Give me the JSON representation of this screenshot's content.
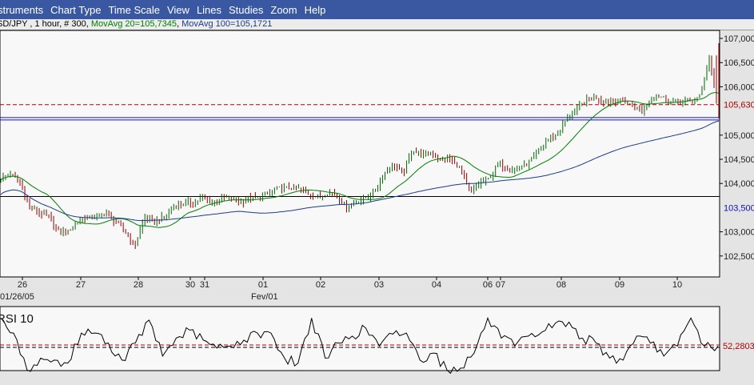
{
  "menu": {
    "items": [
      "struments",
      "Chart Type",
      "Time Scale",
      "View",
      "Lines",
      "Studies",
      "Zoom",
      "Help"
    ]
  },
  "info": {
    "symbol": "SD/JPY , 1 hour, # 300, ",
    "ma20": "MovAvg 20=105,7345",
    "sep": ", ",
    "ma100": "MovAvg 100=105,1721"
  },
  "colors": {
    "menu": "#3a58a2",
    "ma20": "#008000",
    "ma100": "#1a3c8c",
    "up": "#006400",
    "down": "#8b0000",
    "level": "#b00000",
    "support": "#1010c0"
  },
  "price_axis": {
    "labels": [
      "107,000",
      "106,500",
      "106,000",
      "105,000",
      "104,500",
      "104,000",
      "103,000",
      "102,500"
    ],
    "current": "105,630",
    "line_label": "103,500"
  },
  "date_axis": {
    "labels": [
      "26",
      "27",
      "28",
      "30",
      "31",
      "01",
      "02",
      "03",
      "04",
      "06",
      "07",
      "08",
      "09",
      "10"
    ],
    "sub_labels": [
      "01/26/05",
      "Fev/01"
    ]
  },
  "rsi": {
    "title": "RSI 10",
    "value_label": "52,2803"
  },
  "chart_data": {
    "type": "ohlc",
    "title": "",
    "instrument": "USD/JPY",
    "interval": "1 hour",
    "bars": 300,
    "ylim": [
      102000,
      107200
    ],
    "y_ticks": [
      102500,
      103000,
      103500,
      104000,
      104500,
      105000,
      105500,
      106000,
      106500,
      107000
    ],
    "close_path": [
      104100,
      104200,
      104000,
      103500,
      103400,
      103300,
      103000,
      103000,
      103200,
      103300,
      103300,
      103400,
      103200,
      103000,
      102700,
      103300,
      103200,
      103300,
      103500,
      103600,
      103600,
      103700,
      103600,
      103700,
      103700,
      103600,
      103700,
      103700,
      103800,
      103900,
      103900,
      103900,
      103800,
      103700,
      103800,
      103800,
      103500,
      103600,
      103700,
      103800,
      104200,
      104400,
      104200,
      104700,
      104600,
      104600,
      104500,
      104500,
      104300,
      103800,
      104000,
      104100,
      104400,
      104300,
      104300,
      104400,
      104600,
      104900,
      105000,
      105300,
      105500,
      105700,
      105800,
      105700,
      105700,
      105700,
      105600,
      105500,
      105800,
      105800,
      105700,
      105700,
      105700,
      105800,
      106600,
      105400
    ],
    "last_high": 106900,
    "moving_averages": [
      {
        "name": "MovAvg 20",
        "last": 105734.5
      },
      {
        "name": "MovAvg 100",
        "last": 105172.1
      }
    ],
    "horizontal_lines": [
      {
        "value": 105630,
        "style": "dashed",
        "color": "#b00000"
      },
      {
        "value": 105330,
        "style": "double",
        "color": "#1010c0"
      },
      {
        "value": 103730,
        "style": "solid",
        "color": "#000000"
      }
    ],
    "rsi": {
      "period": 10,
      "last": 52.2803,
      "values": [
        80,
        65,
        28,
        40,
        38,
        35,
        65,
        65,
        55,
        38,
        55,
        78,
        42,
        60,
        68,
        58,
        50,
        52,
        58,
        65,
        65,
        40,
        35,
        80,
        40,
        55,
        62,
        70,
        52,
        64,
        65,
        38,
        45,
        28,
        30,
        45,
        80,
        60,
        52,
        62,
        66,
        75,
        76,
        60,
        55,
        40,
        38,
        62,
        55,
        42,
        52,
        80,
        52,
        52
      ]
    }
  }
}
